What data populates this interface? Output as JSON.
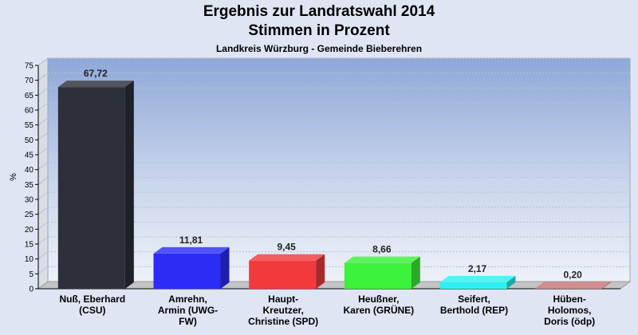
{
  "chart_data": {
    "type": "bar",
    "title": "Ergebnis zur Landratswahl 2014",
    "title2": "Stimmen in Prozent",
    "subtitle": "Landkreis Würzburg - Gemeinde Bieberehren",
    "ylabel": "%",
    "ylim": [
      0,
      75
    ],
    "yticks": [
      0,
      5,
      10,
      15,
      20,
      25,
      30,
      35,
      40,
      45,
      50,
      55,
      60,
      65,
      70,
      75
    ],
    "grid": true,
    "categories": [
      [
        "Nuß, Eberhard",
        "(CSU)"
      ],
      [
        "Amrehn,",
        "Armin (UWG-",
        "FW)"
      ],
      [
        "Haupt-",
        "Kreutzer,",
        "Christine (SPD)"
      ],
      [
        "Heußner,",
        "Karen (GRÜNE)"
      ],
      [
        "Seifert,",
        "Berthold (REP)"
      ],
      [
        "Hüben-",
        "Holomos,",
        "Doris (ödp)"
      ]
    ],
    "values": [
      67.72,
      11.81,
      9.45,
      8.66,
      2.17,
      0.2
    ],
    "value_labels": [
      "67,72",
      "11,81",
      "9,45",
      "8,66",
      "2,17",
      "0,20"
    ],
    "colors": [
      "#2d2f3a",
      "#2b2cf5",
      "#f23a3c",
      "#3cf23a",
      "#2ef0f0",
      "#c87575"
    ]
  }
}
